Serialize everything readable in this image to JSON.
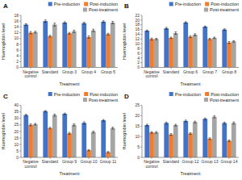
{
  "chart_data": [
    {
      "type": "bar",
      "title": "A",
      "categories": [
        "Negative\ncontrol",
        "Standard",
        "Group 3",
        "Group 4",
        "Group 5"
      ],
      "series": [
        {
          "name": "Pre-induction",
          "color": "#4472C4",
          "values": [
            14.8,
            16.0,
            15.5,
            15.3,
            15.8
          ],
          "errors": [
            0.3,
            0.4,
            0.3,
            0.3,
            0.3
          ]
        },
        {
          "name": "Post-induction",
          "color": "#ED7D31",
          "values": [
            12.0,
            10.8,
            11.8,
            10.5,
            11.5
          ],
          "errors": [
            0.4,
            0.3,
            0.3,
            0.4,
            0.3
          ]
        },
        {
          "name": "Post-treatment",
          "color": "#A5A5A5",
          "values": [
            12.2,
            14.8,
            12.5,
            12.8,
            15.5
          ],
          "errors": [
            0.3,
            0.5,
            0.4,
            0.4,
            0.4
          ]
        }
      ],
      "x_label": "Treatment",
      "y_label": "Haemoglobin level",
      "ylim": [
        0,
        18
      ],
      "yticks": [
        0,
        2,
        4,
        6,
        8,
        10,
        12,
        14,
        16,
        18
      ],
      "legend": "upper right"
    },
    {
      "type": "bar",
      "title": "B",
      "categories": [
        "Negative\ncontrol",
        "Standard",
        "Group 6",
        "Group 7",
        "Group 8"
      ],
      "series": [
        {
          "name": "Pre-induction",
          "color": "#4472C4",
          "values": [
            15.5,
            16.5,
            19.0,
            17.2,
            16.0
          ],
          "errors": [
            0.3,
            0.4,
            0.3,
            0.3,
            0.3
          ]
        },
        {
          "name": "Post-induction",
          "color": "#ED7D31",
          "values": [
            12.0,
            12.5,
            13.0,
            12.0,
            10.5
          ],
          "errors": [
            0.4,
            0.3,
            0.4,
            0.3,
            0.4
          ]
        },
        {
          "name": "Post-treatment",
          "color": "#A5A5A5",
          "values": [
            12.0,
            14.5,
            13.8,
            12.5,
            11.0
          ],
          "errors": [
            0.3,
            0.5,
            0.4,
            0.3,
            0.3
          ]
        }
      ],
      "x_label": "Treatment",
      "y_label": "Haemoglobin level",
      "ylim": [
        0,
        22
      ],
      "yticks": [
        0,
        2,
        4,
        6,
        8,
        10,
        12,
        14,
        16,
        18,
        20,
        22
      ],
      "legend": "upper right"
    },
    {
      "type": "bar",
      "title": "C",
      "categories": [
        "Negative\ncontrol",
        "Standard",
        "Group 9",
        "Group 10",
        "Group 11"
      ],
      "series": [
        {
          "name": "Pre-induction",
          "color": "#4472C4",
          "values": [
            32.5,
            35.5,
            33.5,
            26.5,
            28.5
          ],
          "errors": [
            0.6,
            0.5,
            0.5,
            0.8,
            0.6
          ]
        },
        {
          "name": "Post-induction",
          "color": "#ED7D31",
          "values": [
            25.0,
            22.5,
            18.5,
            5.5,
            4.0
          ],
          "errors": [
            0.7,
            0.6,
            0.7,
            0.5,
            0.5
          ]
        },
        {
          "name": "Post-treatment",
          "color": "#A5A5A5",
          "values": [
            25.5,
            32.5,
            25.0,
            19.5,
            22.5
          ],
          "errors": [
            0.6,
            0.7,
            0.8,
            0.7,
            0.7
          ]
        }
      ],
      "x_label": "Treatment",
      "y_label": "Haemoglobin level",
      "ylim": [
        0,
        40
      ],
      "yticks": [
        0,
        5,
        10,
        15,
        20,
        25,
        30,
        35,
        40
      ],
      "legend": "upper right"
    },
    {
      "type": "bar",
      "title": "D",
      "categories": [
        "Negative\ncontrol",
        "Standard",
        "Group 12",
        "Group 13",
        "Group 14"
      ],
      "series": [
        {
          "name": "Pre-induction",
          "color": "#4472C4",
          "values": [
            15.5,
            16.5,
            17.5,
            18.5,
            16.5
          ],
          "errors": [
            0.4,
            0.4,
            0.4,
            0.4,
            0.4
          ]
        },
        {
          "name": "Post-induction",
          "color": "#ED7D31",
          "values": [
            12.0,
            11.0,
            11.5,
            9.0,
            8.0
          ],
          "errors": [
            0.4,
            0.4,
            0.4,
            0.4,
            0.4
          ]
        },
        {
          "name": "Post-treatment",
          "color": "#A5A5A5",
          "values": [
            12.0,
            15.5,
            17.0,
            19.5,
            16.5
          ],
          "errors": [
            0.4,
            0.4,
            0.4,
            0.5,
            0.5
          ]
        }
      ],
      "x_label": "Treatment",
      "y_label": "Haemoglobin level",
      "ylim": [
        0,
        25
      ],
      "yticks": [
        0,
        5,
        10,
        15,
        20,
        25
      ],
      "legend": "upper right"
    }
  ]
}
